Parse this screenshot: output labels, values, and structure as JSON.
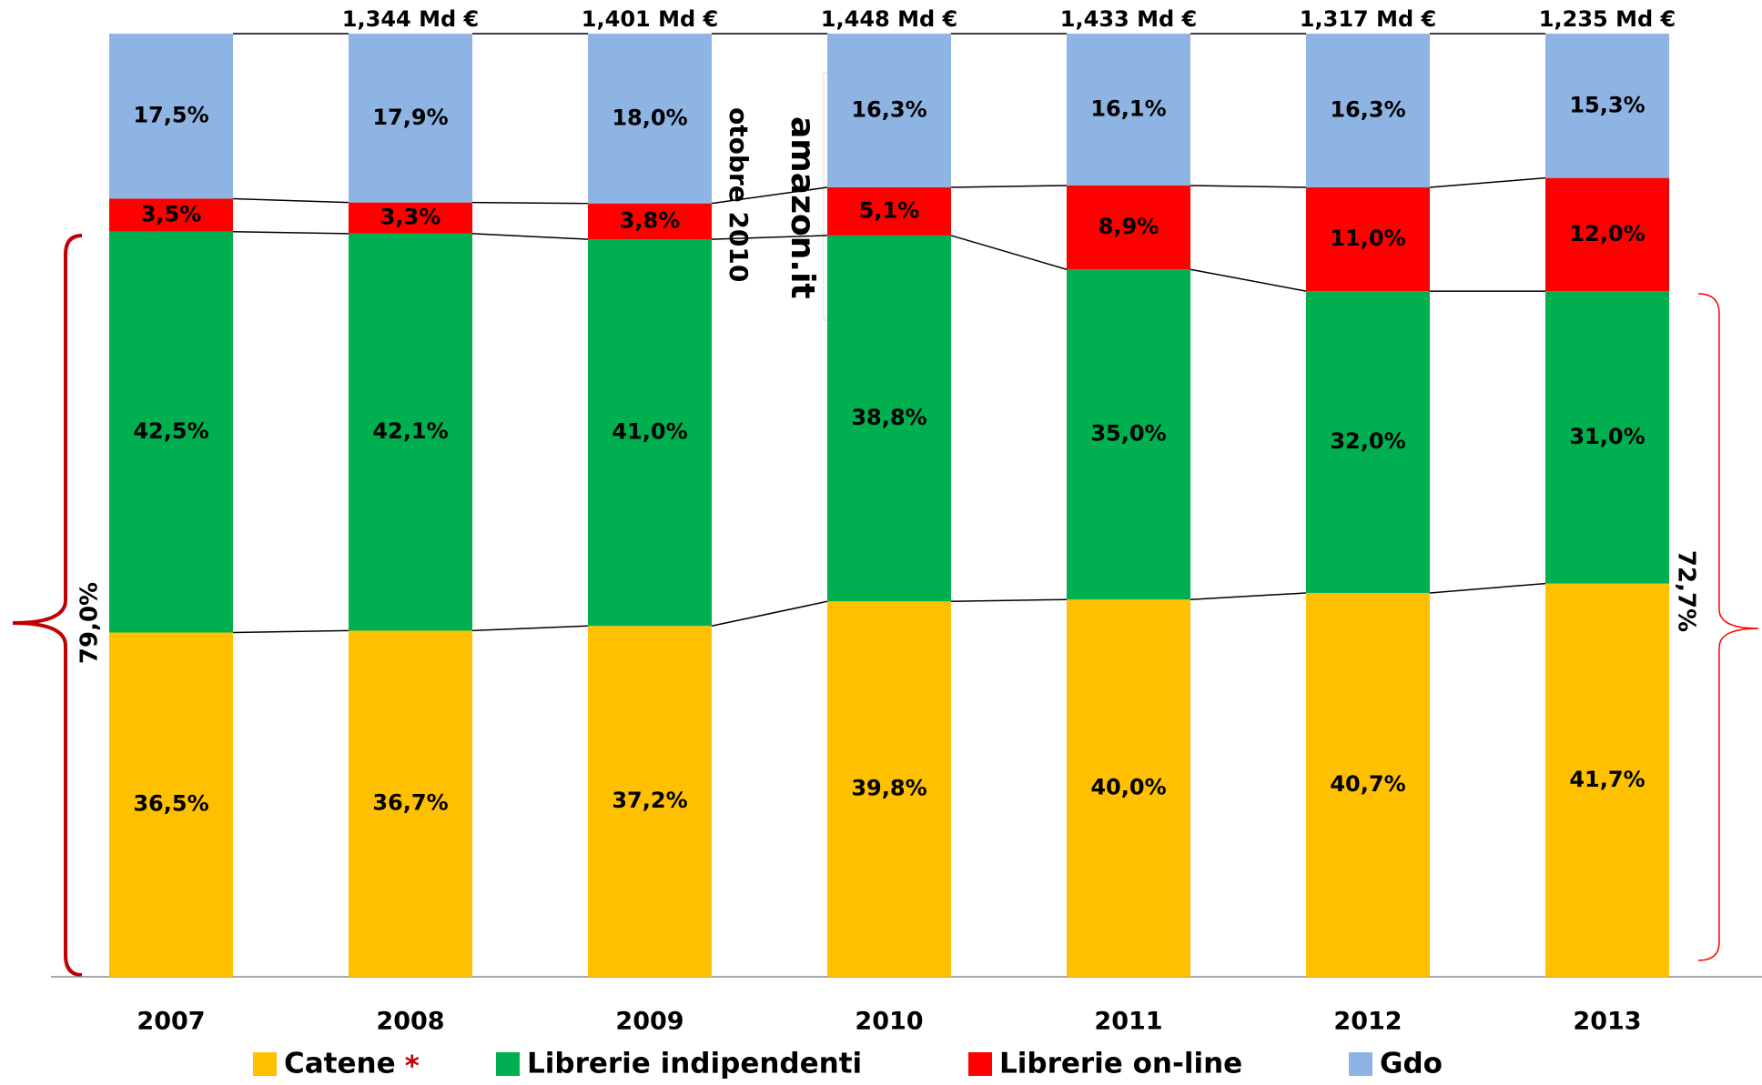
{
  "chart_data": {
    "type": "stacked_bar",
    "categories": [
      "2007",
      "2008",
      "2009",
      "2010",
      "2011",
      "2012",
      "2013"
    ],
    "series": [
      {
        "name": "Catene",
        "color": "#ffc000",
        "values": [
          36.5,
          36.7,
          37.2,
          39.8,
          40.0,
          40.7,
          41.7
        ],
        "value_labels": [
          "36,5%",
          "36,7%",
          "37,2%",
          "39,8%",
          "40,0%",
          "40,7%",
          "41,7%"
        ]
      },
      {
        "name": "Librerie indipendenti",
        "color": "#00b050",
        "values": [
          42.5,
          42.1,
          41.0,
          38.8,
          35.0,
          32.0,
          31.0
        ],
        "value_labels": [
          "42,5%",
          "42,1%",
          "41,0%",
          "38,8%",
          "35,0%",
          "32,0%",
          "31,0%"
        ]
      },
      {
        "name": "Librerie on-line",
        "color": "#ff0000",
        "values": [
          3.5,
          3.3,
          3.8,
          5.1,
          8.9,
          11.0,
          12.0
        ],
        "value_labels": [
          "3,5%",
          "3,3%",
          "3,8%",
          "5,1%",
          "8,9%",
          "11,0%",
          "12,0%"
        ]
      },
      {
        "name": "Gdo",
        "color": "#8eb4e3",
        "values": [
          17.5,
          17.9,
          18.0,
          16.3,
          16.1,
          16.3,
          15.3
        ],
        "value_labels": [
          "17,5%",
          "17,9%",
          "18,0%",
          "16,3%",
          "16,1%",
          "16,3%",
          "15,3%"
        ]
      }
    ],
    "total_labels": [
      null,
      "1,344 Md €",
      "1,401 Md €",
      "1,448 Md €",
      "1,433 Md €",
      "1,317 Md €",
      "1,235 Md €"
    ],
    "ylim": [
      0,
      100
    ],
    "legend_note": "*",
    "annotations": {
      "left_brace": "79,0%",
      "right_brace": "72,7%",
      "event": "otobre 2010",
      "logo": "amazon.it"
    }
  }
}
